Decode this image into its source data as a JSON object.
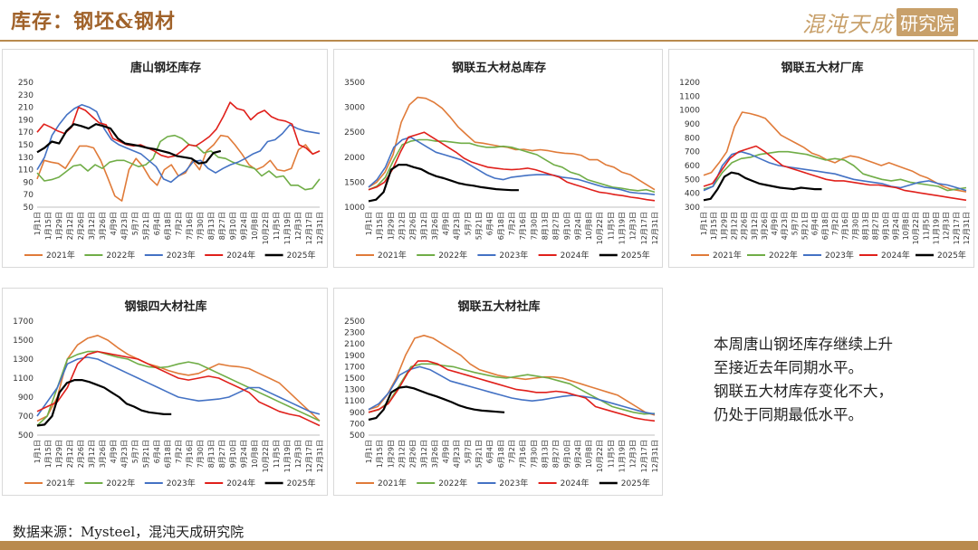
{
  "header": {
    "title": "库存：钢坯&钢材",
    "logo_text": "混沌天成",
    "logo_stamp": "研究院"
  },
  "footer": {
    "source": "数据来源：Mysteel，混沌天成研究院"
  },
  "note": {
    "lines": [
      "本周唐山钢坯库存继续上升",
      "至接近去年同期水平。",
      "钢联五大材库存变化不大，",
      "仍处于同期最低水平。"
    ]
  },
  "colors": {
    "2021年": "#e07b39",
    "2022年": "#70ad47",
    "2023年": "#4472c4",
    "2024年": "#e0201b",
    "2025年": "#000000"
  },
  "chart_data": [
    {
      "type": "line",
      "title": "唐山钢坯库存",
      "x_ticks": [
        "1月1日",
        "1月15日",
        "1月29日",
        "2月12日",
        "2月26日",
        "3月12日",
        "3月26日",
        "4月9日",
        "4月23日",
        "5月7日",
        "5月21日",
        "6月4日",
        "6月18日",
        "7月2日",
        "7月16日",
        "7月30日",
        "8月13日",
        "8月27日",
        "9月10日",
        "9月24日",
        "10月8日",
        "10月22日",
        "11月5日",
        "11月19日",
        "12月3日",
        "12月17日",
        "12月31日"
      ],
      "y_ticks": [
        50,
        70,
        90,
        110,
        130,
        150,
        170,
        190,
        210,
        230,
        250
      ],
      "ylim": [
        50,
        250
      ],
      "legend": "bottom",
      "series": [
        {
          "name": "2021年",
          "values": [
            95,
            125,
            122,
            120,
            112,
            130,
            148,
            148,
            145,
            125,
            97,
            68,
            60,
            110,
            128,
            115,
            96,
            85,
            110,
            118,
            100,
            105,
            125,
            110,
            140,
            150,
            165,
            163,
            150,
            135,
            118,
            110,
            115,
            125,
            110,
            108,
            112,
            142,
            150,
            135,
            140
          ]
        },
        {
          "name": "2022年",
          "values": [
            105,
            92,
            94,
            98,
            107,
            116,
            118,
            108,
            118,
            112,
            122,
            125,
            125,
            120,
            115,
            118,
            128,
            155,
            163,
            165,
            160,
            150,
            148,
            137,
            140,
            130,
            128,
            122,
            118,
            115,
            112,
            100,
            108,
            98,
            100,
            85,
            85,
            78,
            80,
            95
          ]
        },
        {
          "name": "2023年",
          "values": [
            110,
            130,
            165,
            183,
            198,
            208,
            214,
            210,
            203,
            176,
            158,
            150,
            145,
            140,
            135,
            125,
            115,
            95,
            90,
            100,
            108,
            123,
            125,
            112,
            105,
            112,
            118,
            122,
            128,
            135,
            140,
            155,
            158,
            168,
            182,
            176,
            172,
            170,
            168
          ]
        },
        {
          "name": "2024年",
          "values": [
            170,
            183,
            178,
            172,
            168,
            178,
            210,
            205,
            195,
            185,
            182,
            160,
            155,
            150,
            148,
            150,
            145,
            140,
            133,
            130,
            132,
            140,
            150,
            148,
            155,
            163,
            175,
            195,
            218,
            208,
            205,
            190,
            200,
            205,
            195,
            190,
            188,
            183,
            150,
            145,
            135,
            140
          ]
        },
        {
          "name": "2025年",
          "values": [
            138,
            145,
            155,
            152,
            172,
            183,
            180,
            176,
            183,
            180,
            176,
            160,
            152,
            150,
            148,
            145,
            143,
            140,
            137,
            132,
            130,
            128,
            120,
            122,
            137,
            140
          ]
        }
      ]
    },
    {
      "type": "line",
      "title": "钢联五大材总库存",
      "x_ticks": [
        "1月1日",
        "1月15日",
        "1月29日",
        "2月12日",
        "2月26日",
        "3月12日",
        "3月26日",
        "4月9日",
        "4月23日",
        "5月7日",
        "5月21日",
        "6月4日",
        "6月18日",
        "7月2日",
        "7月16日",
        "7月30日",
        "8月13日",
        "8月27日",
        "9月10日",
        "9月24日",
        "10月8日",
        "10月22日",
        "11月5日",
        "11月19日",
        "12月3日",
        "12月17日",
        "12月31日"
      ],
      "y_ticks": [
        1000,
        1500,
        2000,
        2500,
        3000,
        3500
      ],
      "ylim": [
        1000,
        3500
      ],
      "legend": "bottom",
      "series": [
        {
          "name": "2021年",
          "values": [
            1400,
            1500,
            1700,
            2050,
            2700,
            3050,
            3200,
            3180,
            3100,
            2980,
            2800,
            2600,
            2450,
            2300,
            2280,
            2250,
            2220,
            2200,
            2150,
            2160,
            2130,
            2150,
            2130,
            2100,
            2080,
            2070,
            2040,
            1950,
            1950,
            1850,
            1800,
            1700,
            1650,
            1550,
            1450,
            1350
          ]
        },
        {
          "name": "2022年",
          "values": [
            1350,
            1420,
            1600,
            1950,
            2250,
            2320,
            2350,
            2350,
            2320,
            2320,
            2300,
            2280,
            2280,
            2230,
            2200,
            2200,
            2220,
            2200,
            2150,
            2100,
            2050,
            1950,
            1850,
            1800,
            1700,
            1650,
            1550,
            1500,
            1450,
            1400,
            1380,
            1350,
            1330,
            1350,
            1300
          ]
        },
        {
          "name": "2023年",
          "values": [
            1400,
            1550,
            1800,
            2200,
            2350,
            2400,
            2300,
            2200,
            2100,
            2050,
            2000,
            1950,
            1850,
            1750,
            1650,
            1580,
            1550,
            1600,
            1620,
            1640,
            1650,
            1650,
            1640,
            1600,
            1580,
            1550,
            1500,
            1450,
            1400,
            1380,
            1350,
            1300,
            1280,
            1270,
            1250
          ]
        },
        {
          "name": "2024年",
          "values": [
            1350,
            1400,
            1500,
            1750,
            2100,
            2400,
            2450,
            2500,
            2400,
            2300,
            2200,
            2100,
            1980,
            1900,
            1850,
            1800,
            1780,
            1760,
            1750,
            1760,
            1780,
            1750,
            1700,
            1650,
            1600,
            1500,
            1450,
            1400,
            1350,
            1300,
            1280,
            1250,
            1230,
            1200,
            1180,
            1150,
            1130
          ]
        },
        {
          "name": "2025年",
          "values": [
            1120,
            1150,
            1300,
            1750,
            1850,
            1850,
            1800,
            1760,
            1680,
            1620,
            1580,
            1530,
            1480,
            1450,
            1430,
            1400,
            1380,
            1360,
            1350,
            1340,
            1340
          ]
        }
      ]
    },
    {
      "type": "line",
      "title": "钢联五大材厂库",
      "x_ticks": [
        "1月1日",
        "1月15日",
        "1月29日",
        "2月12日",
        "2月26日",
        "3月12日",
        "3月26日",
        "4月9日",
        "4月23日",
        "5月7日",
        "5月21日",
        "6月4日",
        "6月18日",
        "7月2日",
        "7月16日",
        "7月30日",
        "8月13日",
        "8月27日",
        "9月10日",
        "9月24日",
        "10月8日",
        "10月22日",
        "11月5日",
        "11月19日",
        "12月3日",
        "12月17日",
        "12月31日"
      ],
      "y_ticks": [
        300,
        400,
        500,
        600,
        700,
        800,
        900,
        1000,
        1100,
        1200
      ],
      "ylim": [
        300,
        1200
      ],
      "legend": "bottom",
      "series": [
        {
          "name": "2021年",
          "values": [
            530,
            550,
            620,
            700,
            880,
            985,
            975,
            960,
            940,
            880,
            820,
            790,
            760,
            730,
            690,
            670,
            640,
            620,
            650,
            670,
            660,
            640,
            620,
            600,
            620,
            600,
            580,
            560,
            530,
            510,
            480,
            450,
            430,
            420,
            410
          ]
        },
        {
          "name": "2022年",
          "values": [
            430,
            450,
            550,
            620,
            650,
            660,
            680,
            690,
            700,
            700,
            690,
            680,
            660,
            640,
            650,
            640,
            600,
            540,
            520,
            500,
            490,
            500,
            480,
            470,
            460,
            450,
            420,
            430,
            440
          ]
        },
        {
          "name": "2023年",
          "values": [
            420,
            450,
            600,
            680,
            700,
            680,
            650,
            620,
            600,
            590,
            580,
            570,
            560,
            550,
            540,
            520,
            500,
            490,
            480,
            470,
            450,
            440,
            460,
            480,
            490,
            470,
            460,
            440,
            420
          ]
        },
        {
          "name": "2024年",
          "values": [
            450,
            470,
            560,
            650,
            700,
            720,
            740,
            700,
            650,
            600,
            580,
            560,
            540,
            520,
            500,
            490,
            490,
            480,
            470,
            460,
            460,
            450,
            440,
            420,
            410,
            400,
            390,
            380,
            370,
            360,
            350
          ]
        },
        {
          "name": "2025年",
          "values": [
            350,
            360,
            430,
            520,
            550,
            540,
            510,
            490,
            470,
            460,
            450,
            440,
            435,
            430,
            440,
            435,
            430,
            430
          ]
        }
      ]
    },
    {
      "type": "line",
      "title": "钢银四大材社库",
      "x_ticks": [
        "1月1日",
        "1月15日",
        "1月29日",
        "2月12日",
        "2月26日",
        "3月12日",
        "3月26日",
        "4月9日",
        "4月23日",
        "5月7日",
        "5月21日",
        "6月4日",
        "6月18日",
        "7月2日",
        "7月16日",
        "7月30日",
        "8月13日",
        "8月27日",
        "9月10日",
        "9月24日",
        "10月8日",
        "10月22日",
        "11月5日",
        "11月19日",
        "12月3日",
        "12月17日",
        "12月31日"
      ],
      "y_ticks": [
        500,
        700,
        900,
        1100,
        1300,
        1500,
        1700
      ],
      "ylim": [
        500,
        1700
      ],
      "legend": "bottom",
      "series": [
        {
          "name": "2021年",
          "values": [
            650,
            700,
            900,
            1300,
            1450,
            1520,
            1550,
            1500,
            1420,
            1350,
            1300,
            1250,
            1220,
            1180,
            1150,
            1130,
            1150,
            1200,
            1250,
            1230,
            1220,
            1200,
            1150,
            1100,
            1050,
            950,
            850,
            750,
            650
          ]
        },
        {
          "name": "2022年",
          "values": [
            600,
            700,
            1000,
            1300,
            1350,
            1380,
            1380,
            1350,
            1320,
            1300,
            1250,
            1220,
            1210,
            1220,
            1250,
            1270,
            1250,
            1200,
            1150,
            1100,
            1050,
            1000,
            950,
            900,
            850,
            800,
            750,
            700,
            650
          ]
        },
        {
          "name": "2023年",
          "values": [
            700,
            850,
            1000,
            1250,
            1300,
            1320,
            1300,
            1250,
            1200,
            1150,
            1100,
            1050,
            1000,
            950,
            900,
            880,
            860,
            870,
            880,
            900,
            950,
            1000,
            1000,
            950,
            900,
            850,
            800,
            750,
            720
          ]
        },
        {
          "name": "2024年",
          "values": [
            750,
            800,
            850,
            1000,
            1250,
            1350,
            1380,
            1360,
            1340,
            1320,
            1300,
            1250,
            1200,
            1150,
            1100,
            1080,
            1100,
            1120,
            1100,
            1050,
            1000,
            950,
            850,
            800,
            750,
            720,
            700,
            650,
            600
          ]
        },
        {
          "name": "2025年",
          "values": [
            600,
            610,
            700,
            950,
            1050,
            1080,
            1080,
            1060,
            1030,
            1000,
            950,
            900,
            830,
            800,
            760,
            740,
            730,
            720,
            720
          ]
        }
      ]
    },
    {
      "type": "line",
      "title": "钢联五大材社库",
      "x_ticks": [
        "1月1日",
        "1月15日",
        "1月29日",
        "2月12日",
        "2月26日",
        "3月12日",
        "3月26日",
        "4月9日",
        "4月23日",
        "5月7日",
        "5月21日",
        "6月4日",
        "6月18日",
        "7月2日",
        "7月16日",
        "7月30日",
        "8月13日",
        "8月27日",
        "9月10日",
        "9月24日",
        "10月8日",
        "10月22日",
        "11月5日",
        "11月19日",
        "12月3日",
        "12月17日",
        "12月31日"
      ],
      "y_ticks": [
        500,
        700,
        900,
        1100,
        1300,
        1500,
        1700,
        1900,
        2100,
        2300,
        2500
      ],
      "ylim": [
        500,
        2500
      ],
      "legend": "bottom",
      "series": [
        {
          "name": "2021年",
          "values": [
            950,
            1000,
            1200,
            1500,
            1900,
            2200,
            2250,
            2200,
            2100,
            2000,
            1900,
            1750,
            1650,
            1600,
            1550,
            1520,
            1500,
            1480,
            1500,
            1520,
            1520,
            1500,
            1450,
            1400,
            1350,
            1300,
            1250,
            1200,
            1100,
            1000,
            900,
            850
          ]
        },
        {
          "name": "2022年",
          "values": [
            900,
            950,
            1100,
            1400,
            1700,
            1750,
            1750,
            1720,
            1700,
            1650,
            1600,
            1560,
            1520,
            1500,
            1530,
            1560,
            1530,
            1500,
            1450,
            1400,
            1300,
            1200,
            1100,
            1000,
            950,
            900,
            870,
            880
          ]
        },
        {
          "name": "2023年",
          "values": [
            950,
            1050,
            1250,
            1550,
            1650,
            1700,
            1650,
            1550,
            1450,
            1400,
            1350,
            1300,
            1250,
            1200,
            1150,
            1120,
            1100,
            1120,
            1150,
            1180,
            1200,
            1180,
            1150,
            1100,
            1050,
            1000,
            950,
            900,
            870
          ]
        },
        {
          "name": "2024年",
          "values": [
            900,
            950,
            1050,
            1300,
            1600,
            1800,
            1800,
            1750,
            1650,
            1600,
            1550,
            1500,
            1450,
            1400,
            1350,
            1300,
            1280,
            1250,
            1250,
            1270,
            1250,
            1200,
            1150,
            1000,
            950,
            900,
            850,
            800,
            770,
            750
          ]
        },
        {
          "name": "2025年",
          "values": [
            770,
            800,
            950,
            1250,
            1330,
            1350,
            1320,
            1270,
            1220,
            1180,
            1130,
            1080,
            1020,
            980,
            950,
            930,
            920,
            910,
            900
          ]
        }
      ]
    }
  ]
}
